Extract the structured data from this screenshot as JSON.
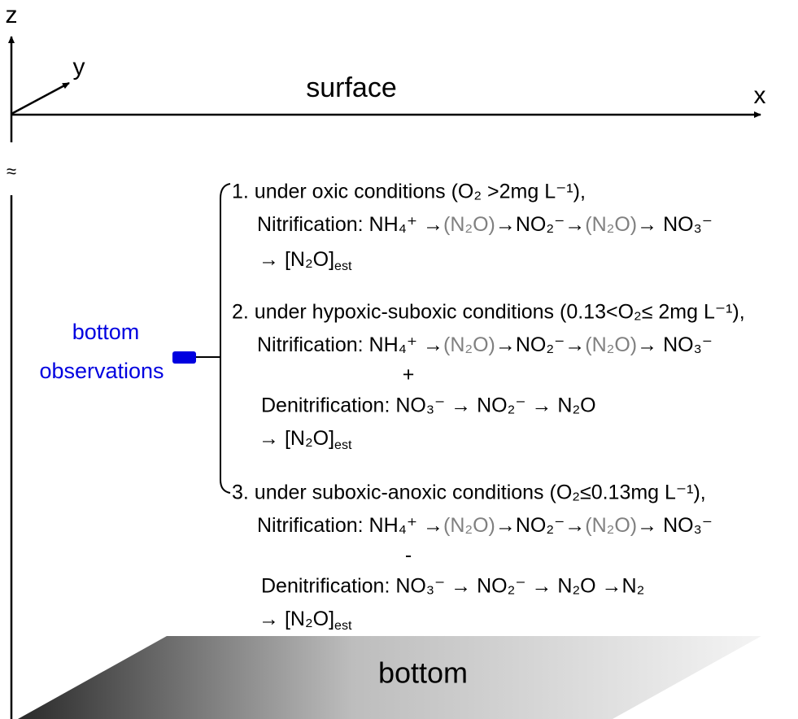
{
  "axes": {
    "z": "z",
    "y": "y",
    "x": "x"
  },
  "surface": "surface",
  "break": "≈",
  "observation": {
    "label": [
      "bottom",
      "observations"
    ]
  },
  "conditions": [
    {
      "heading": "1. under oxic conditions (O₂ >2mg L⁻¹),",
      "nitrification": [
        "Nitrification: NH₄⁺ →",
        "(N₂O)",
        "→NO₂⁻→",
        "(N₂O)",
        "→ NO₃⁻"
      ],
      "result": [
        "→ [N₂O]",
        "est"
      ]
    },
    {
      "heading": "2. under hypoxic-suboxic conditions (0.13<O₂≤ 2mg L⁻¹),",
      "nitrification": [
        "Nitrification: NH₄⁺ →",
        "(N₂O)",
        "→NO₂⁻→",
        "(N₂O)",
        "→ NO₃⁻"
      ],
      "operator": "+",
      "denitrification": "Denitrification: NO₃⁻ → NO₂⁻ → N₂O",
      "result": [
        "→ [N₂O]",
        "est"
      ]
    },
    {
      "heading": "3. under suboxic-anoxic conditions (O₂≤0.13mg L⁻¹),",
      "nitrification": [
        "Nitrification: NH₄⁺ →",
        "(N₂O)",
        "→NO₂⁻→",
        "(N₂O)",
        "→ NO₃⁻"
      ],
      "operator": "-",
      "denitrification": "Denitrification: NO₃⁻ → NO₂⁻ → N₂O →N₂",
      "result": [
        "→ [N₂O]",
        "est"
      ]
    }
  ],
  "bottom": "bottom"
}
